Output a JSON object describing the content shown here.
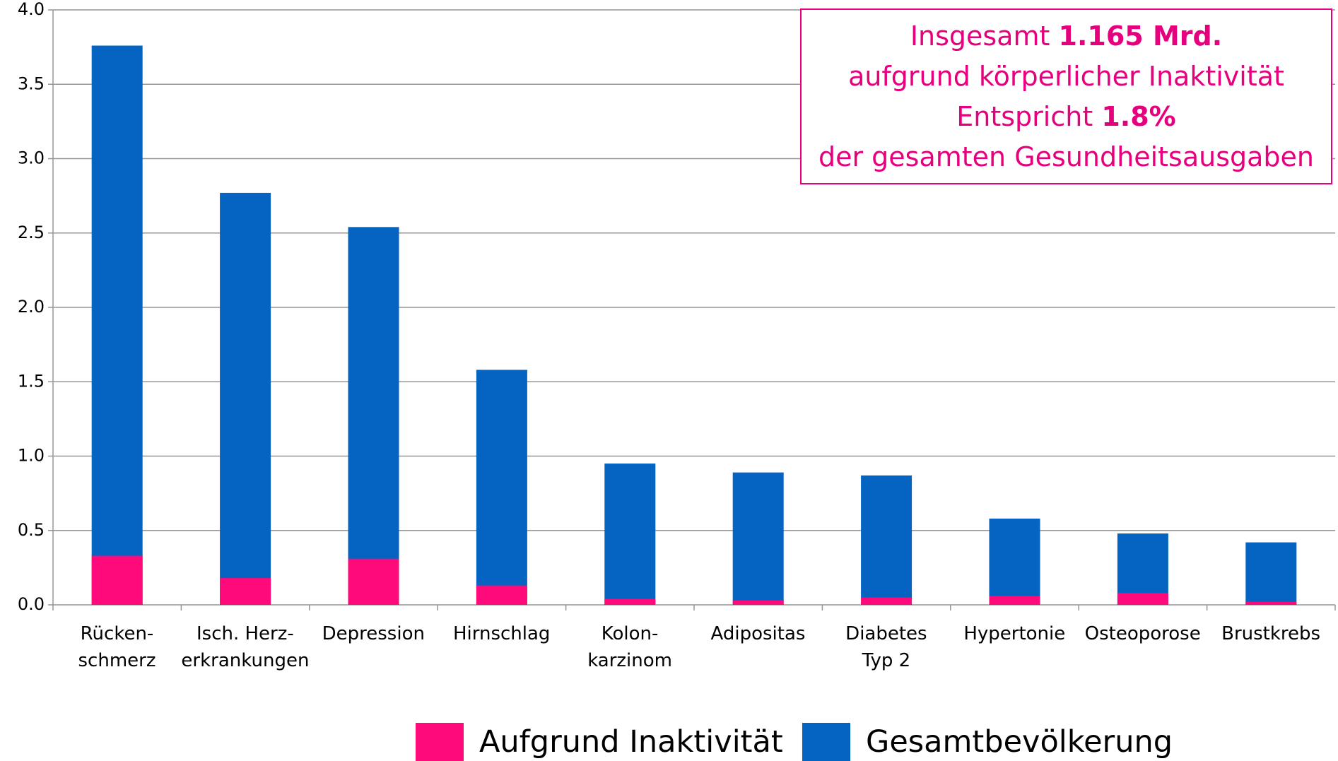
{
  "chart_data": {
    "type": "bar",
    "overlap": true,
    "categories": [
      "Rücken-\nschmerz",
      "Isch. Herz-\nerkrankungen",
      "Depression",
      "Hirnschlag",
      "Kolon-\nkarzinom",
      "Adipositas",
      "Diabetes\nTyp 2",
      "Hypertonie",
      "Osteoporose",
      "Brustkrebs"
    ],
    "series": [
      {
        "name": "Gesamtbevölkerung",
        "color": "#0563c1",
        "values": [
          3.76,
          2.77,
          2.54,
          1.58,
          0.95,
          0.89,
          0.87,
          0.58,
          0.48,
          0.42
        ]
      },
      {
        "name": "Aufgrund Inaktivität",
        "color": "#fe0a7a",
        "values": [
          0.33,
          0.18,
          0.31,
          0.13,
          0.04,
          0.03,
          0.05,
          0.06,
          0.08,
          0.02
        ]
      }
    ],
    "legend_order": [
      1,
      0
    ],
    "ylim": [
      0,
      4
    ],
    "yticks": [
      {
        "value": 0,
        "label": "0.0"
      },
      0.5,
      {
        "value": 1,
        "label": "1.0"
      },
      1.5,
      {
        "value": 2,
        "label": "2.0"
      },
      2.5,
      {
        "value": 3,
        "label": "3.0"
      },
      3.5,
      {
        "value": 4,
        "label": "4.0"
      }
    ],
    "grid": true,
    "annotation": {
      "color": "#e6007e",
      "lines": [
        [
          "Insgesamt ",
          "1.165 Mrd."
        ],
        [
          "aufgrund körperlicher Inaktivität"
        ],
        [
          "Entspricht ",
          "1.8%"
        ],
        [
          "der gesamten Gesundheitsausgaben"
        ]
      ]
    }
  }
}
